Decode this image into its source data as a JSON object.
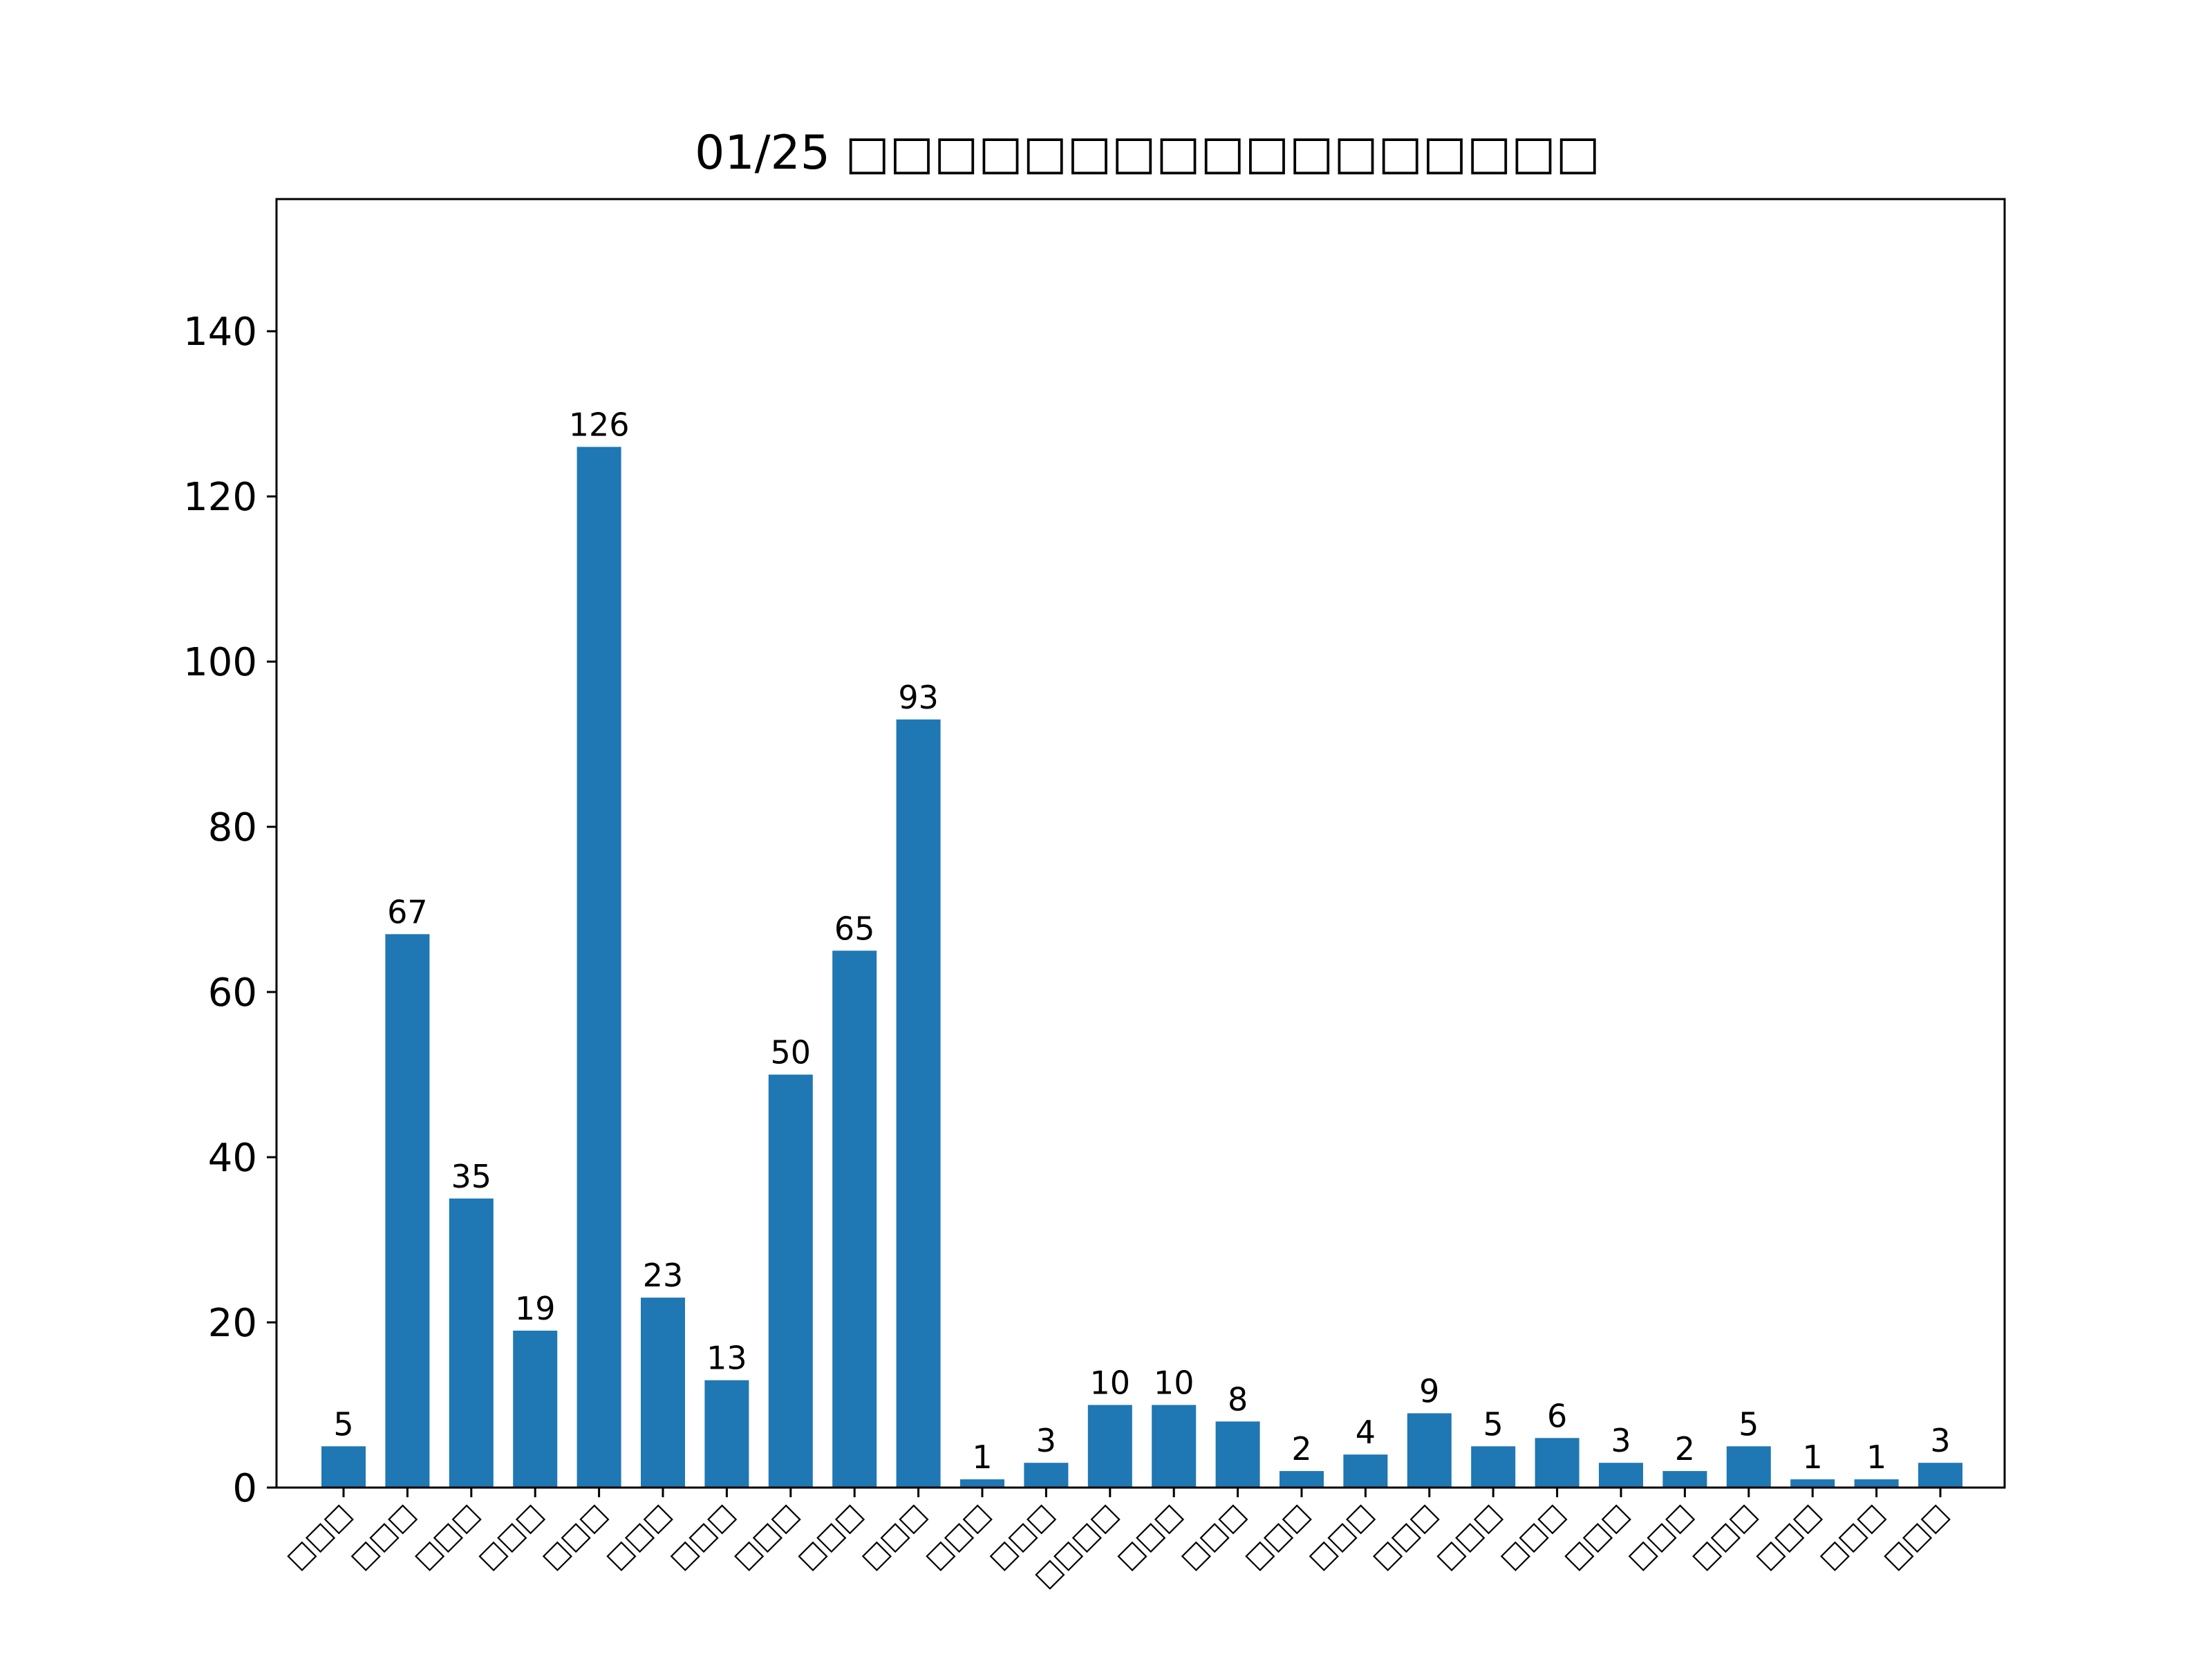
{
  "chart_data": {
    "type": "bar",
    "title": "01/25 □□□□□□□□□□□□□□□□□",
    "xlabel": "",
    "ylabel": "",
    "categories": [
      "□□□",
      "□□□",
      "□□□",
      "□□□",
      "□□□",
      "□□□",
      "□□□",
      "□□□",
      "□□□",
      "□□□",
      "□□□",
      "□□□",
      "□□□□",
      "□□□",
      "□□□",
      "□□□",
      "□□□",
      "□□□",
      "□□□",
      "□□□",
      "□□□",
      "□□□",
      "□□□",
      "□□□",
      "□□□",
      "□□□"
    ],
    "values": [
      5,
      67,
      35,
      19,
      126,
      23,
      13,
      50,
      65,
      93,
      1,
      3,
      10,
      10,
      8,
      2,
      4,
      9,
      5,
      6,
      3,
      2,
      5,
      1,
      1,
      3
    ],
    "ylim": [
      0,
      156
    ],
    "yticks": [
      0,
      20,
      40,
      60,
      80,
      100,
      120,
      140
    ],
    "bar_color": "#1f77b4",
    "grid": false,
    "legend": "none"
  }
}
